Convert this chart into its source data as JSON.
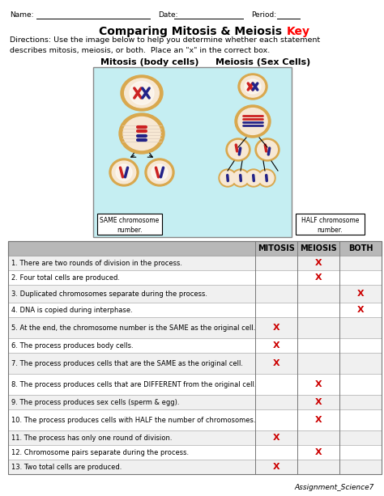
{
  "title_black": "Comparing Mitosis & Meiosis ",
  "title_red": "Key",
  "name_line": "Name:_________________________",
  "date_line": "Date:_______________",
  "period_line": "Period:____",
  "directions": "Directions: Use the image below to help you determine whether each statement\ndescribes mitosis, meiosis, or both.  Place an \"x\" in the correct box.",
  "mitosis_label": "Mitosis (body cells)",
  "meiosis_label": "Meiosis (Sex Cells)",
  "same_label": "SAME chromosome\nnumber.",
  "half_label": "HALF chromosome\nnumber.",
  "col_headers": [
    "MITOSIS",
    "MEIOSIS",
    "BOTH"
  ],
  "rows": [
    {
      "text": "1. There are two rounds of division in the process.",
      "mitosis": false,
      "meiosis": true,
      "both": false
    },
    {
      "text": "2. Four total cells are produced.",
      "mitosis": false,
      "meiosis": true,
      "both": false
    },
    {
      "text": "3. Duplicated chromosomes separate during the process.",
      "mitosis": false,
      "meiosis": false,
      "both": true
    },
    {
      "text": "4. DNA is copied during interphase.",
      "mitosis": false,
      "meiosis": false,
      "both": true
    },
    {
      "text": "5. At the end, the chromosome number is the SAME as the original cell.",
      "mitosis": true,
      "meiosis": false,
      "both": false
    },
    {
      "text": "6. The process produces body cells.",
      "mitosis": true,
      "meiosis": false,
      "both": false
    },
    {
      "text": "7. The process produces cells that are the SAME as the original cell.",
      "mitosis": true,
      "meiosis": false,
      "both": false
    },
    {
      "text": "8. The process produces cells that are DIFFERENT from the original cell.",
      "mitosis": false,
      "meiosis": true,
      "both": false
    },
    {
      "text": "9. The process produces sex cells (sperm & egg).",
      "mitosis": false,
      "meiosis": true,
      "both": false
    },
    {
      "text": "10. The process produces cells with HALF the number of chromosomes.",
      "mitosis": false,
      "meiosis": true,
      "both": false
    },
    {
      "text": "11. The process has only one round of division.",
      "mitosis": true,
      "meiosis": false,
      "both": false
    },
    {
      "text": "12. Chromosome pairs separate during the process.",
      "mitosis": false,
      "meiosis": true,
      "both": false
    },
    {
      "text": "13. Two total cells are produced.",
      "mitosis": true,
      "meiosis": false,
      "both": false
    }
  ],
  "footer": "Assignment_Science7",
  "bg_color": "#ffffff",
  "header_color": "#b8b8b8",
  "x_color": "#cc0000",
  "image_bg": "#c5eef2",
  "fig_w": 4.74,
  "fig_h": 6.13,
  "dpi": 100
}
